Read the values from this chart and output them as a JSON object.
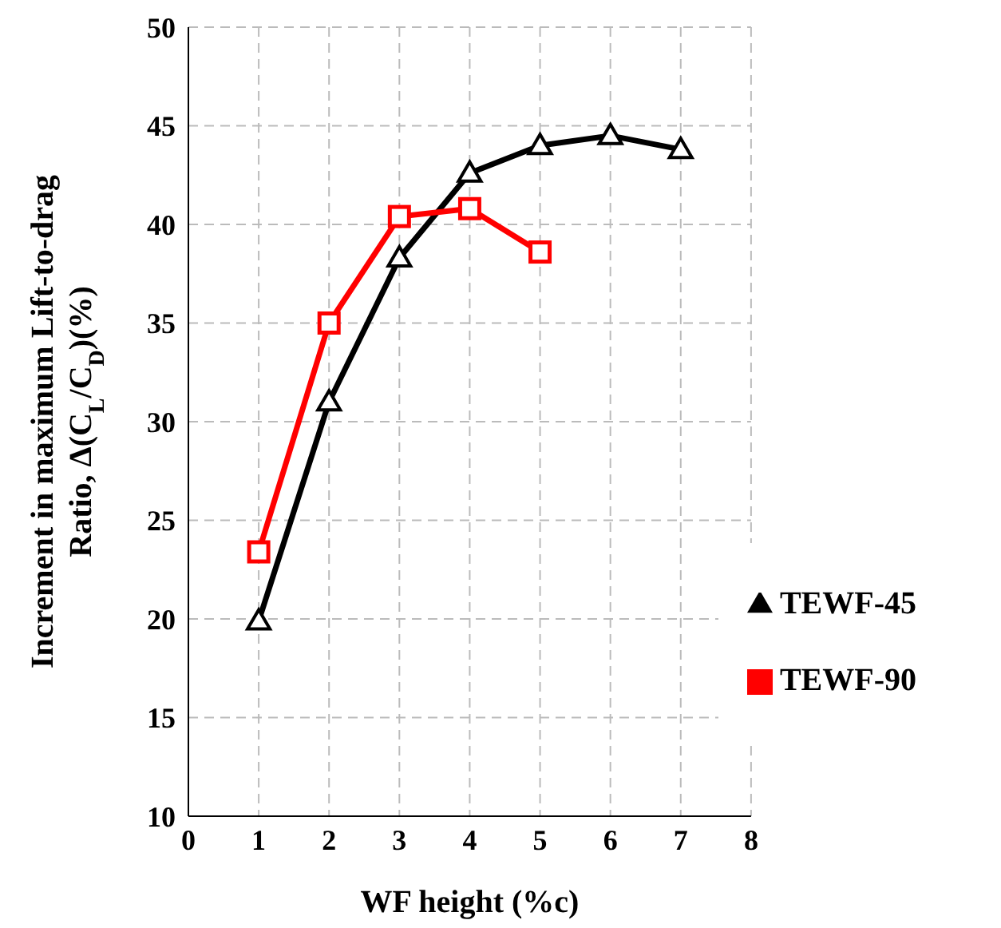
{
  "chart_data": {
    "type": "line",
    "xlabel": "WF height (%c)",
    "ylabel": "Increment in maximum Lift-to-drag Ratio, Δ(C$_{L}$/C$_{D}$)(%)",
    "x": [
      1,
      2,
      3,
      4,
      5,
      6,
      7
    ],
    "series": [
      {
        "name": "TEWF-45",
        "color": "#000000",
        "marker": "triangle",
        "values": [
          19.9,
          31.0,
          38.3,
          42.6,
          44.0,
          44.5,
          43.8
        ]
      },
      {
        "name": "TEWF-90",
        "color": "#ff0000",
        "marker": "square",
        "values": [
          23.4,
          35.0,
          40.4,
          40.8,
          38.6,
          null,
          null
        ]
      }
    ],
    "xlim": [
      0,
      8
    ],
    "xticks": [
      0,
      1,
      2,
      3,
      4,
      5,
      6,
      7,
      8
    ],
    "ylim": [
      10,
      50
    ],
    "yticks": [
      10,
      15,
      20,
      25,
      30,
      35,
      40,
      45,
      50
    ],
    "grid": true,
    "legend": "right",
    "line_style": "solid"
  }
}
